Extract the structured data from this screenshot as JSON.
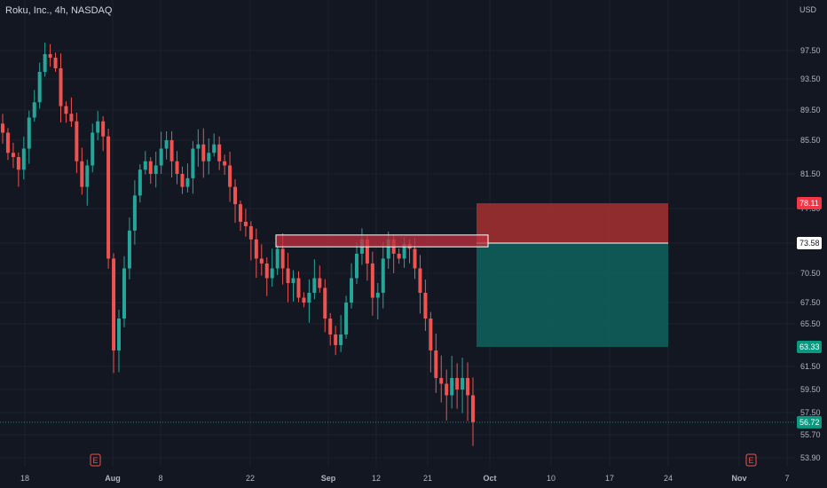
{
  "header": {
    "symbol_title": "Roku, Inc., 4h, NASDAQ",
    "currency": "USD"
  },
  "price_axis": {
    "ticks": [
      "97.50",
      "93.50",
      "89.50",
      "85.50",
      "81.50",
      "77.50",
      "70.50",
      "67.50",
      "65.50",
      "61.50",
      "59.50",
      "57.50",
      "55.70",
      "53.90"
    ]
  },
  "price_tags": [
    {
      "label": "78.11",
      "value": 78.11,
      "color": "#f23645"
    },
    {
      "label": "73.58",
      "value": 73.58,
      "color": "#ffffff"
    },
    {
      "label": "63.33",
      "value": 63.33,
      "color": "#089981"
    },
    {
      "label": "56.72",
      "value": 56.72,
      "color": "#089981"
    }
  ],
  "time_axis": {
    "ticks": [
      "18",
      "Aug",
      "8",
      "22",
      "Sep",
      "12",
      "21",
      "Oct",
      "10",
      "17",
      "24",
      "Nov",
      "7"
    ]
  },
  "earnings_markers": [
    {
      "label": "E",
      "date": "Jul 28"
    },
    {
      "label": "E",
      "date": "Oct 27"
    }
  ],
  "position_tool": {
    "type": "short",
    "stop_price": 78.11,
    "entry_price": 73.58,
    "target_price": 63.33,
    "stop_color": "#a7302f",
    "target_color": "#0f5e5a"
  },
  "resistance_zone": {
    "top": 74.5,
    "bottom": 73.2,
    "color": "#c2303f"
  },
  "colors": {
    "up": "#26a69a",
    "down": "#ef5350",
    "background": "#131722"
  },
  "chart_data": {
    "type": "candlestick",
    "timeframe": "4h",
    "last_price": 56.72,
    "close_series": [
      86.5,
      84.0,
      83.5,
      82.0,
      84.5,
      88.5,
      90.5,
      94.5,
      97.0,
      96.5,
      95.0,
      90.0,
      89.0,
      88.0,
      83.0,
      80.0,
      82.5,
      86.5,
      88.0,
      86.0,
      72.0,
      63.0,
      66.0,
      71.0,
      75.0,
      79.0,
      82.0,
      83.0,
      81.5,
      82.5,
      84.5,
      85.5,
      83.0,
      81.5,
      80.0,
      81.0,
      84.5,
      85.0,
      83.0,
      84.0,
      85.0,
      83.0,
      82.5,
      80.0,
      78.0,
      76.0,
      75.5,
      74.0,
      72.0,
      71.5,
      70.0,
      71.0,
      73.0,
      71.0,
      69.5,
      70.0,
      68.0,
      67.5,
      68.5,
      70.0,
      69.0,
      66.0,
      64.5,
      63.5,
      64.5,
      67.5,
      70.0,
      72.5,
      74.0,
      71.5,
      68.0,
      68.5,
      72.0,
      74.0,
      72.5,
      72.0,
      73.5,
      73.0,
      71.0,
      68.5,
      66.0,
      63.0,
      60.5,
      60.0,
      59.0,
      60.5,
      59.5,
      60.5,
      59.0,
      56.72
    ]
  }
}
